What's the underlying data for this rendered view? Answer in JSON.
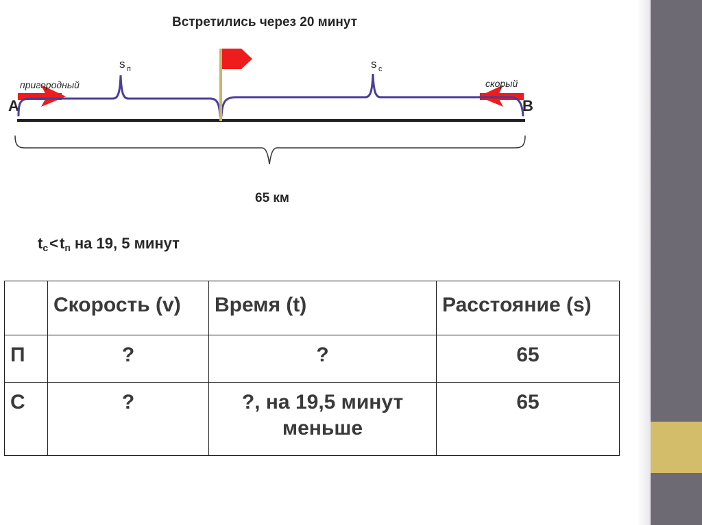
{
  "diagram": {
    "title": "Встретились через 20 минут",
    "point_a": "A",
    "point_b": "B",
    "train_suburban_label": "пригородный",
    "train_express_label": "скорый",
    "s_p_main": "s",
    "s_p_sub": "п",
    "s_c_main": "s",
    "s_c_sub": "с",
    "distance_label": "65 км",
    "colors": {
      "brace": "#4b3d9a",
      "arrow": "#ee1c1c",
      "flag": "#ee1c1c",
      "flag_pole": "#c9b56c",
      "track": "#1f1f1f"
    }
  },
  "condition": {
    "t_left": "t",
    "t_left_sub": "с",
    "relation": "<",
    "t_right": "t",
    "t_right_sub": "п",
    "rest": " на 19, 5 минут"
  },
  "table": {
    "headers": [
      "",
      "Скорость (v)",
      "Время (t)",
      "Расстояние (s)"
    ],
    "rows": [
      {
        "label": "П",
        "speed": "?",
        "time": "?",
        "distance": "65"
      },
      {
        "label": "С",
        "speed": "?",
        "time": "?, на 19,5 минут меньше",
        "distance": "65"
      }
    ]
  }
}
